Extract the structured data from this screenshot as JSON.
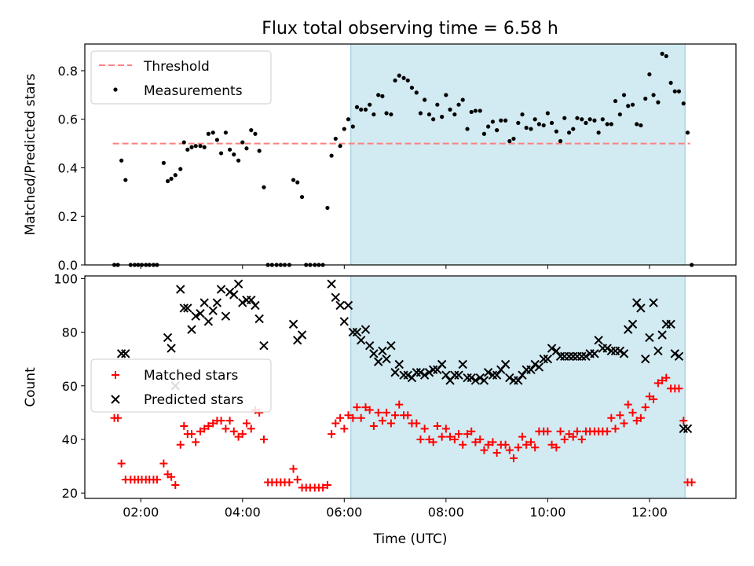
{
  "figure": {
    "title": "Flux total observing time = 6.58 h"
  },
  "chart_data": [
    {
      "type": "scatter",
      "panel": "top",
      "title": "Flux total observing time = 6.58 h",
      "xlabel": "",
      "ylabel": "Matched/Predicted stars",
      "x_unit": "hours UTC",
      "xlim": [
        0.9,
        13.7
      ],
      "ylim": [
        0.0,
        0.91
      ],
      "yticks": [
        0.0,
        0.2,
        0.4,
        0.6,
        0.8
      ],
      "ytick_labels": [
        "0.0",
        "0.2",
        "0.4",
        "0.6",
        "0.8"
      ],
      "xticks": [
        2,
        4,
        6,
        8,
        10,
        12
      ],
      "xtick_labels": [],
      "shaded_region": {
        "x": [
          6.13,
          12.7
        ],
        "color": "#add8e6"
      },
      "legend": {
        "location": "upper left",
        "entries": [
          "Threshold",
          "Measurements"
        ]
      },
      "series": [
        {
          "name": "Threshold",
          "kind": "dashed-line",
          "color": "#ff7f7f",
          "x": [
            1.45,
            12.8
          ],
          "y": [
            0.5,
            0.5
          ]
        },
        {
          "name": "Measurements",
          "kind": "points",
          "color": "#000000",
          "x": [
            1.48,
            1.55,
            1.62,
            1.7,
            1.8,
            1.88,
            1.95,
            2.02,
            2.1,
            2.17,
            2.25,
            2.32,
            2.45,
            2.53,
            2.6,
            2.68,
            2.78,
            2.85,
            2.92,
            3.0,
            3.08,
            3.17,
            3.25,
            3.33,
            3.42,
            3.5,
            3.58,
            3.67,
            3.75,
            3.83,
            3.92,
            4.0,
            4.08,
            4.17,
            4.25,
            4.33,
            4.42,
            4.5,
            4.58,
            4.67,
            4.75,
            4.83,
            4.92,
            5.0,
            5.08,
            5.17,
            5.25,
            5.33,
            5.42,
            5.5,
            5.58,
            5.67,
            5.75,
            5.83,
            5.92,
            6.0,
            6.08,
            6.17,
            6.25,
            6.33,
            6.42,
            6.5,
            6.58,
            6.67,
            6.75,
            6.83,
            6.92,
            7.0,
            7.08,
            7.17,
            7.25,
            7.33,
            7.42,
            7.5,
            7.58,
            7.67,
            7.75,
            7.83,
            7.92,
            8.0,
            8.08,
            8.17,
            8.25,
            8.33,
            8.42,
            8.5,
            8.58,
            8.67,
            8.75,
            8.83,
            8.92,
            9.0,
            9.08,
            9.17,
            9.25,
            9.33,
            9.42,
            9.5,
            9.58,
            9.67,
            9.75,
            9.83,
            9.92,
            10.0,
            10.08,
            10.17,
            10.25,
            10.33,
            10.42,
            10.5,
            10.58,
            10.67,
            10.75,
            10.83,
            10.92,
            11.0,
            11.08,
            11.17,
            11.25,
            11.33,
            11.42,
            11.5,
            11.58,
            11.67,
            11.75,
            11.83,
            11.92,
            12.0,
            12.08,
            12.17,
            12.25,
            12.33,
            12.42,
            12.5,
            12.58,
            12.67,
            12.75,
            12.83
          ],
          "y": [
            0.0,
            0.0,
            0.43,
            0.35,
            0.0,
            0.0,
            0.0,
            0.0,
            0.0,
            0.0,
            0.0,
            0.0,
            0.42,
            0.345,
            0.355,
            0.37,
            0.395,
            0.505,
            0.475,
            0.485,
            0.49,
            0.49,
            0.485,
            0.54,
            0.545,
            0.515,
            0.46,
            0.545,
            0.475,
            0.455,
            0.43,
            0.505,
            0.48,
            0.555,
            0.54,
            0.47,
            0.32,
            0.0,
            0.0,
            0.0,
            0.0,
            0.0,
            0.0,
            0.35,
            0.34,
            0.28,
            0.0,
            0.0,
            0.0,
            0.0,
            0.0,
            0.235,
            0.45,
            0.52,
            0.49,
            0.56,
            0.6,
            0.57,
            0.65,
            0.64,
            0.64,
            0.66,
            0.62,
            0.7,
            0.695,
            0.625,
            0.62,
            0.76,
            0.78,
            0.77,
            0.76,
            0.73,
            0.71,
            0.625,
            0.68,
            0.62,
            0.6,
            0.66,
            0.61,
            0.7,
            0.64,
            0.62,
            0.66,
            0.68,
            0.56,
            0.63,
            0.635,
            0.635,
            0.54,
            0.57,
            0.59,
            0.555,
            0.595,
            0.595,
            0.51,
            0.52,
            0.585,
            0.62,
            0.565,
            0.56,
            0.6,
            0.58,
            0.575,
            0.625,
            0.585,
            0.55,
            0.51,
            0.605,
            0.545,
            0.56,
            0.605,
            0.6,
            0.585,
            0.6,
            0.595,
            0.545,
            0.6,
            0.58,
            0.58,
            0.675,
            0.62,
            0.7,
            0.655,
            0.66,
            0.58,
            0.575,
            0.685,
            0.785,
            0.7,
            0.67,
            0.87,
            0.86,
            0.75,
            0.715,
            0.715,
            0.665,
            0.545,
            0.0
          ]
        }
      ]
    },
    {
      "type": "scatter",
      "panel": "bottom",
      "title": "",
      "xlabel": "Time (UTC)",
      "ylabel": "Count",
      "x_unit": "hours UTC",
      "xlim": [
        0.9,
        13.7
      ],
      "ylim": [
        18,
        101
      ],
      "yticks": [
        20,
        40,
        60,
        80,
        100
      ],
      "ytick_labels": [
        "20",
        "40",
        "60",
        "80",
        "100"
      ],
      "xticks": [
        2,
        4,
        6,
        8,
        10,
        12
      ],
      "xtick_labels": [
        "02:00",
        "04:00",
        "06:00",
        "08:00",
        "10:00",
        "12:00"
      ],
      "shaded_region": {
        "x": [
          6.13,
          12.7
        ],
        "color": "#add8e6"
      },
      "legend": {
        "location": "center left",
        "entries": [
          "Matched stars",
          "Predicted stars"
        ]
      },
      "series": [
        {
          "name": "Matched stars",
          "marker": "plus",
          "color": "#ff0000",
          "x": [
            1.48,
            1.55,
            1.62,
            1.7,
            1.8,
            1.88,
            1.95,
            2.02,
            2.1,
            2.17,
            2.25,
            2.32,
            2.45,
            2.53,
            2.6,
            2.68,
            2.78,
            2.85,
            2.92,
            3.0,
            3.08,
            3.17,
            3.25,
            3.33,
            3.42,
            3.5,
            3.58,
            3.67,
            3.75,
            3.83,
            3.92,
            4.0,
            4.08,
            4.17,
            4.25,
            4.33,
            4.42,
            4.5,
            4.58,
            4.67,
            4.75,
            4.83,
            4.92,
            5.0,
            5.08,
            5.17,
            5.25,
            5.33,
            5.42,
            5.5,
            5.58,
            5.67,
            5.75,
            5.83,
            5.92,
            6.0,
            6.08,
            6.17,
            6.25,
            6.33,
            6.42,
            6.5,
            6.58,
            6.67,
            6.75,
            6.83,
            6.92,
            7.0,
            7.08,
            7.17,
            7.25,
            7.33,
            7.42,
            7.5,
            7.58,
            7.67,
            7.75,
            7.83,
            7.92,
            8.0,
            8.08,
            8.17,
            8.25,
            8.33,
            8.42,
            8.5,
            8.58,
            8.67,
            8.75,
            8.83,
            8.92,
            9.0,
            9.08,
            9.17,
            9.25,
            9.33,
            9.42,
            9.5,
            9.58,
            9.67,
            9.75,
            9.83,
            9.92,
            10.0,
            10.08,
            10.17,
            10.25,
            10.33,
            10.42,
            10.5,
            10.58,
            10.67,
            10.75,
            10.83,
            10.92,
            11.0,
            11.08,
            11.17,
            11.25,
            11.33,
            11.42,
            11.5,
            11.58,
            11.67,
            11.75,
            11.83,
            11.92,
            12.0,
            12.08,
            12.17,
            12.25,
            12.33,
            12.42,
            12.5,
            12.58,
            12.67,
            12.75,
            12.83
          ],
          "y": [
            48,
            48,
            31,
            25,
            25,
            25,
            25,
            25,
            25,
            25,
            25,
            25,
            31,
            27,
            26,
            23,
            38,
            45,
            42,
            42,
            39,
            43,
            44,
            45,
            46,
            47,
            47,
            44,
            47,
            43,
            41,
            42,
            46,
            44,
            51,
            50,
            40,
            24,
            24,
            24,
            24,
            24,
            24,
            29,
            25,
            22,
            22,
            22,
            22,
            22,
            22,
            23,
            42,
            46,
            48,
            44,
            49,
            48,
            52,
            48,
            52,
            51,
            45,
            50,
            47,
            50,
            46,
            49,
            53,
            49,
            49,
            46,
            46,
            40,
            44,
            40,
            39,
            45,
            41,
            44,
            41,
            40,
            42,
            38,
            42,
            43,
            39,
            40,
            36,
            38,
            39,
            35,
            38,
            38,
            36,
            33,
            37,
            41,
            38,
            39,
            37,
            43,
            43,
            43,
            38,
            37,
            43,
            40,
            42,
            41,
            43,
            40,
            43,
            43,
            43,
            43,
            43,
            43,
            48,
            44,
            49,
            46,
            53,
            50,
            47,
            48,
            52,
            56,
            55,
            61,
            62,
            63,
            59,
            59,
            59,
            47,
            24,
            24
          ],
          "x_extra_note": ""
        },
        {
          "name": "Predicted stars",
          "marker": "x",
          "color": "#000000",
          "x": [
            1.62,
            1.7,
            2.53,
            2.6,
            2.78,
            2.85,
            2.92,
            3.0,
            3.08,
            3.17,
            3.25,
            3.33,
            3.42,
            3.5,
            3.58,
            3.67,
            3.75,
            3.83,
            3.92,
            4.0,
            4.08,
            4.17,
            4.25,
            4.33,
            4.42,
            5.0,
            5.08,
            5.17,
            5.75,
            5.83,
            5.92,
            6.0,
            6.08,
            6.17,
            6.25,
            6.33,
            6.42,
            6.5,
            6.58,
            6.67,
            6.75,
            6.83,
            6.92,
            7.0,
            7.08,
            7.17,
            7.25,
            7.33,
            7.42,
            7.5,
            7.58,
            7.67,
            7.75,
            7.83,
            7.92,
            8.0,
            8.08,
            8.17,
            8.25,
            8.33,
            8.42,
            8.5,
            8.58,
            8.67,
            8.75,
            8.83,
            8.92,
            9.0,
            9.08,
            9.17,
            9.25,
            9.33,
            9.42,
            9.5,
            9.58,
            9.67,
            9.75,
            9.83,
            9.92,
            10.0,
            10.08,
            10.17,
            10.25,
            10.33,
            10.42,
            10.5,
            10.58,
            10.67,
            10.75,
            10.83,
            10.92,
            11.0,
            11.08,
            11.17,
            11.25,
            11.33,
            11.42,
            11.5,
            11.58,
            11.67,
            11.75,
            11.83,
            11.92,
            12.0,
            12.08,
            12.17,
            12.25,
            12.33,
            12.42,
            12.5,
            12.58,
            12.67,
            12.75,
            2.68
          ],
          "y": [
            72,
            72,
            78,
            74,
            96,
            89,
            89,
            81,
            86,
            87,
            91,
            84,
            88,
            91,
            96,
            86,
            95,
            94,
            98,
            91,
            92,
            92,
            90,
            85,
            75,
            83,
            77,
            79,
            98,
            93,
            90,
            84,
            90,
            80,
            80,
            77,
            81,
            75,
            72,
            69,
            73,
            70,
            75,
            65,
            68,
            64,
            64,
            63,
            65,
            65,
            64,
            65,
            66,
            66,
            68,
            64,
            62,
            64,
            64,
            68,
            63,
            63,
            62,
            63,
            62,
            65,
            64,
            64,
            66,
            68,
            63,
            62,
            62,
            64,
            66,
            66,
            68,
            67,
            70,
            70,
            74,
            73,
            71,
            71,
            71,
            71,
            71,
            71,
            71,
            72,
            72,
            77,
            74,
            74,
            73,
            73,
            73,
            72,
            81,
            83,
            91,
            89,
            70,
            78,
            91,
            73,
            79,
            83,
            83,
            72,
            71,
            44,
            44,
            60
          ]
        }
      ]
    }
  ]
}
